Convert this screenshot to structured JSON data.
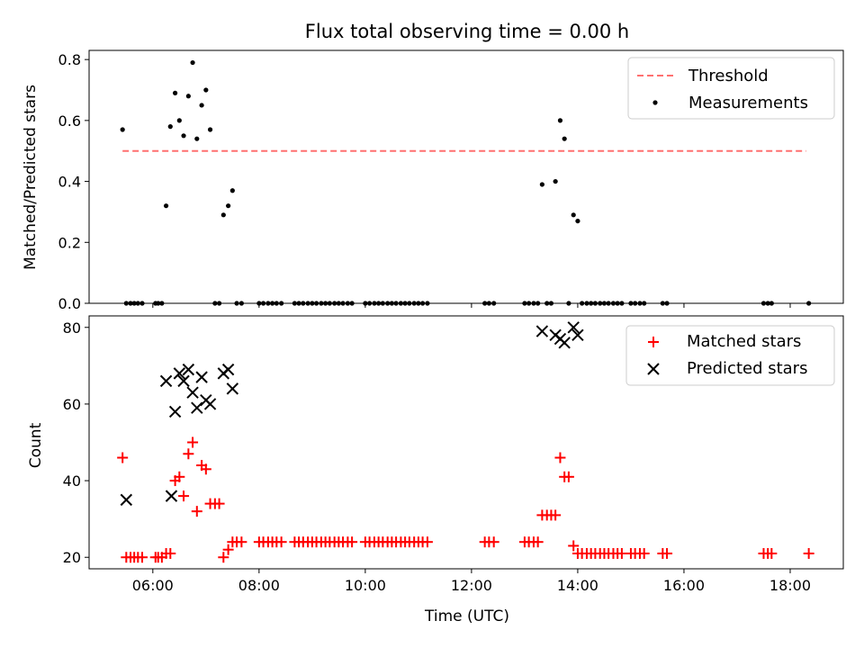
{
  "chart_data": [
    {
      "type": "scatter",
      "title": "Flux total observing time = 0.00 h",
      "xlabel": "",
      "ylabel": "Matched/Predicted stars",
      "xlim": [
        4.8,
        19.0
      ],
      "ylim": [
        0.0,
        0.83
      ],
      "yticks": [
        0.0,
        0.2,
        0.4,
        0.6,
        0.8
      ],
      "ytick_labels": [
        "0.0",
        "0.2",
        "0.4",
        "0.6",
        "0.8"
      ],
      "xticks": [
        6,
        8,
        10,
        12,
        14,
        16,
        18
      ],
      "legend_position": "upper-right",
      "series": [
        {
          "name": "Threshold",
          "kind": "dashed-line",
          "color": "#ff7070",
          "x": [
            5.43,
            18.3
          ],
          "y": [
            0.5,
            0.5
          ]
        },
        {
          "name": "Measurements",
          "kind": "dot",
          "color": "#000000",
          "x": [
            5.43,
            5.5,
            5.58,
            5.65,
            5.72,
            5.8,
            6.05,
            6.1,
            6.17,
            6.25,
            6.33,
            6.42,
            6.5,
            6.58,
            6.67,
            6.75,
            6.83,
            6.92,
            7.0,
            7.08,
            7.17,
            7.25,
            7.33,
            7.42,
            7.5,
            7.58,
            7.67,
            8.0,
            8.08,
            8.17,
            8.25,
            8.33,
            8.42,
            8.67,
            8.75,
            8.83,
            8.92,
            9.0,
            9.08,
            9.17,
            9.25,
            9.33,
            9.42,
            9.5,
            9.58,
            9.67,
            9.75,
            10.0,
            10.08,
            10.17,
            10.25,
            10.33,
            10.42,
            10.5,
            10.58,
            10.67,
            10.75,
            10.83,
            10.92,
            11.0,
            11.08,
            11.17,
            12.25,
            12.33,
            12.42,
            13.0,
            13.08,
            13.17,
            13.25,
            13.33,
            13.42,
            13.5,
            13.58,
            13.67,
            13.75,
            13.83,
            13.92,
            14.0,
            14.08,
            14.17,
            14.25,
            14.33,
            14.42,
            14.5,
            14.58,
            14.67,
            14.75,
            14.83,
            15.0,
            15.08,
            15.17,
            15.25,
            15.6,
            15.68,
            17.5,
            17.58,
            17.65,
            18.35
          ],
          "y": [
            0.57,
            0.0,
            0.0,
            0.0,
            0.0,
            0.0,
            0.0,
            0.0,
            0.0,
            0.32,
            0.58,
            0.69,
            0.6,
            0.55,
            0.68,
            0.79,
            0.54,
            0.65,
            0.7,
            0.57,
            0.0,
            0.0,
            0.29,
            0.32,
            0.37,
            0.0,
            0.0,
            0.0,
            0.0,
            0.0,
            0.0,
            0.0,
            0.0,
            0.0,
            0.0,
            0.0,
            0.0,
            0.0,
            0.0,
            0.0,
            0.0,
            0.0,
            0.0,
            0.0,
            0.0,
            0.0,
            0.0,
            0.0,
            0.0,
            0.0,
            0.0,
            0.0,
            0.0,
            0.0,
            0.0,
            0.0,
            0.0,
            0.0,
            0.0,
            0.0,
            0.0,
            0.0,
            0.0,
            0.0,
            0.0,
            0.0,
            0.0,
            0.0,
            0.0,
            0.39,
            0.0,
            0.0,
            0.4,
            0.6,
            0.54,
            0.0,
            0.29,
            0.27,
            0.0,
            0.0,
            0.0,
            0.0,
            0.0,
            0.0,
            0.0,
            0.0,
            0.0,
            0.0,
            0.0,
            0.0,
            0.0,
            0.0,
            0.0,
            0.0,
            0.0,
            0.0,
            0.0,
            0.0
          ]
        }
      ]
    },
    {
      "type": "scatter",
      "title": "",
      "xlabel": "Time (UTC)",
      "ylabel": "Count",
      "xlim": [
        4.8,
        19.0
      ],
      "ylim": [
        17,
        83
      ],
      "yticks": [
        20,
        40,
        60,
        80
      ],
      "ytick_labels": [
        "20",
        "40",
        "60",
        "80"
      ],
      "xticks": [
        6,
        8,
        10,
        12,
        14,
        16,
        18
      ],
      "xtick_labels": [
        "06:00",
        "08:00",
        "10:00",
        "12:00",
        "14:00",
        "16:00",
        "18:00"
      ],
      "legend_position": "upper-right",
      "series": [
        {
          "name": "Matched stars",
          "kind": "plus",
          "color": "#ff0000",
          "x": [
            5.43,
            5.5,
            5.58,
            5.65,
            5.72,
            5.8,
            6.05,
            6.1,
            6.17,
            6.25,
            6.33,
            6.42,
            6.5,
            6.58,
            6.67,
            6.75,
            6.83,
            6.92,
            7.0,
            7.08,
            7.17,
            7.25,
            7.33,
            7.42,
            7.5,
            7.58,
            7.67,
            8.0,
            8.08,
            8.17,
            8.25,
            8.33,
            8.42,
            8.67,
            8.75,
            8.83,
            8.92,
            9.0,
            9.08,
            9.17,
            9.25,
            9.33,
            9.42,
            9.5,
            9.58,
            9.67,
            9.75,
            10.0,
            10.08,
            10.17,
            10.25,
            10.33,
            10.42,
            10.5,
            10.58,
            10.67,
            10.75,
            10.83,
            10.92,
            11.0,
            11.08,
            11.17,
            12.25,
            12.33,
            12.42,
            13.0,
            13.08,
            13.17,
            13.25,
            13.33,
            13.42,
            13.5,
            13.58,
            13.67,
            13.75,
            13.83,
            13.92,
            14.0,
            14.08,
            14.17,
            14.25,
            14.33,
            14.42,
            14.5,
            14.58,
            14.67,
            14.75,
            14.83,
            15.0,
            15.08,
            15.17,
            15.25,
            15.6,
            15.68,
            17.5,
            17.58,
            17.65,
            18.35
          ],
          "y": [
            46,
            20,
            20,
            20,
            20,
            20,
            20,
            20,
            20,
            21,
            21,
            40,
            41,
            36,
            47,
            50,
            32,
            44,
            43,
            34,
            34,
            34,
            20,
            22,
            24,
            24,
            24,
            24,
            24,
            24,
            24,
            24,
            24,
            24,
            24,
            24,
            24,
            24,
            24,
            24,
            24,
            24,
            24,
            24,
            24,
            24,
            24,
            24,
            24,
            24,
            24,
            24,
            24,
            24,
            24,
            24,
            24,
            24,
            24,
            24,
            24,
            24,
            24,
            24,
            24,
            24,
            24,
            24,
            24,
            31,
            31,
            31,
            31,
            46,
            41,
            41,
            23,
            21,
            21,
            21,
            21,
            21,
            21,
            21,
            21,
            21,
            21,
            21,
            21,
            21,
            21,
            21,
            21,
            21,
            21,
            21,
            21,
            21
          ]
        },
        {
          "name": "Predicted stars",
          "kind": "cross",
          "color": "#000000",
          "x": [
            5.5,
            6.25,
            6.35,
            6.42,
            6.5,
            6.58,
            6.67,
            6.75,
            6.83,
            6.92,
            7.0,
            7.08,
            7.33,
            7.42,
            7.5,
            13.33,
            13.58,
            13.67,
            13.75,
            13.92,
            14.0
          ],
          "y": [
            35,
            66,
            36,
            58,
            68,
            66,
            69,
            63,
            59,
            67,
            61,
            60,
            68,
            69,
            64,
            79,
            78,
            77,
            76,
            80,
            78
          ]
        }
      ]
    }
  ]
}
